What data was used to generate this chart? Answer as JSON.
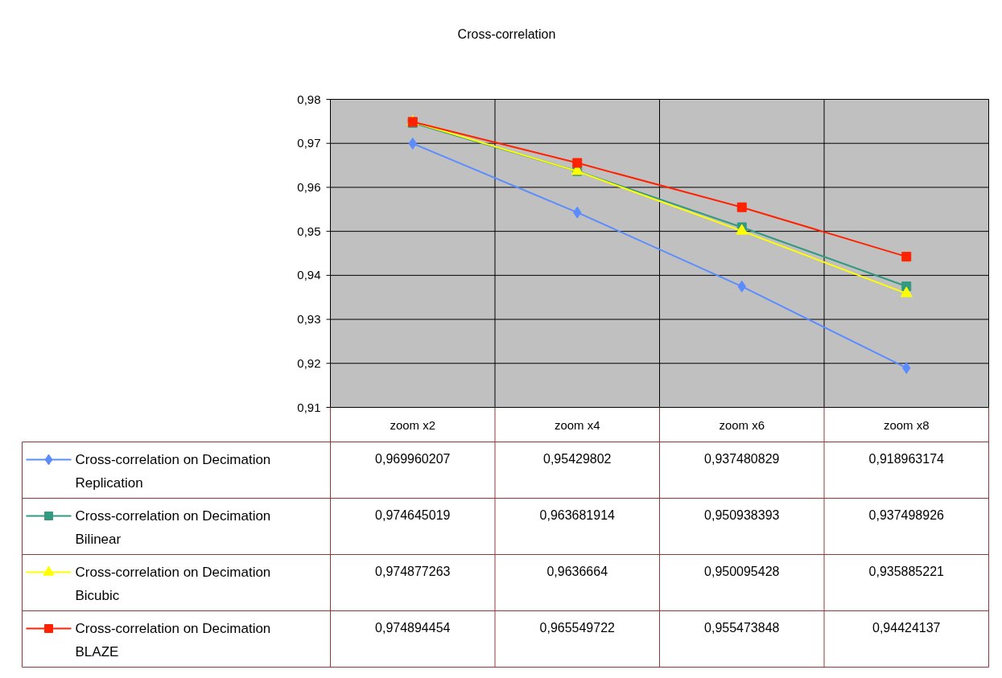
{
  "chart_data": {
    "type": "line",
    "title": "Cross-correlation",
    "categories": [
      "zoom x2",
      "zoom x4",
      "zoom x6",
      "zoom x8"
    ],
    "ylim": [
      0.91,
      0.98
    ],
    "yticks": [
      {
        "value": 0.91,
        "label": "0,91"
      },
      {
        "value": 0.92,
        "label": "0,92"
      },
      {
        "value": 0.93,
        "label": "0,93"
      },
      {
        "value": 0.94,
        "label": "0,94"
      },
      {
        "value": 0.95,
        "label": "0,95"
      },
      {
        "value": 0.96,
        "label": "0,96"
      },
      {
        "value": 0.97,
        "label": "0,97"
      },
      {
        "value": 0.98,
        "label": "0,98"
      }
    ],
    "grid": true,
    "legend": "bottom left",
    "series": [
      {
        "name": "Cross-correlation on Decimation Replication",
        "color": "#5b8cff",
        "marker": "diamond",
        "values": [
          0.969960207,
          0.95429802,
          0.937480829,
          0.918963174
        ],
        "value_labels": [
          "0,969960207",
          "0,95429802",
          "0,937480829",
          "0,918963174"
        ]
      },
      {
        "name": "Cross-correlation on Decimation Bilinear",
        "color": "#339980",
        "marker": "square",
        "values": [
          0.974645019,
          0.963681914,
          0.950938393,
          0.937498926
        ],
        "value_labels": [
          "0,974645019",
          "0,963681914",
          "0,950938393",
          "0,937498926"
        ]
      },
      {
        "name": "Cross-correlation on Decimation Bicubic",
        "color": "#ffff00",
        "marker": "triangle",
        "values": [
          0.974877263,
          0.9636664,
          0.950095428,
          0.935885221
        ],
        "value_labels": [
          "0,974877263",
          "0,9636664",
          "0,950095428",
          "0,935885221"
        ]
      },
      {
        "name": "Cross-correlation on Decimation BLAZE",
        "color": "#ff2200",
        "marker": "square",
        "values": [
          0.974894454,
          0.965549722,
          0.955473848,
          0.94424137
        ],
        "value_labels": [
          "0,974894454",
          "0,965549722",
          "0,955473848",
          "0,94424137"
        ]
      }
    ]
  }
}
